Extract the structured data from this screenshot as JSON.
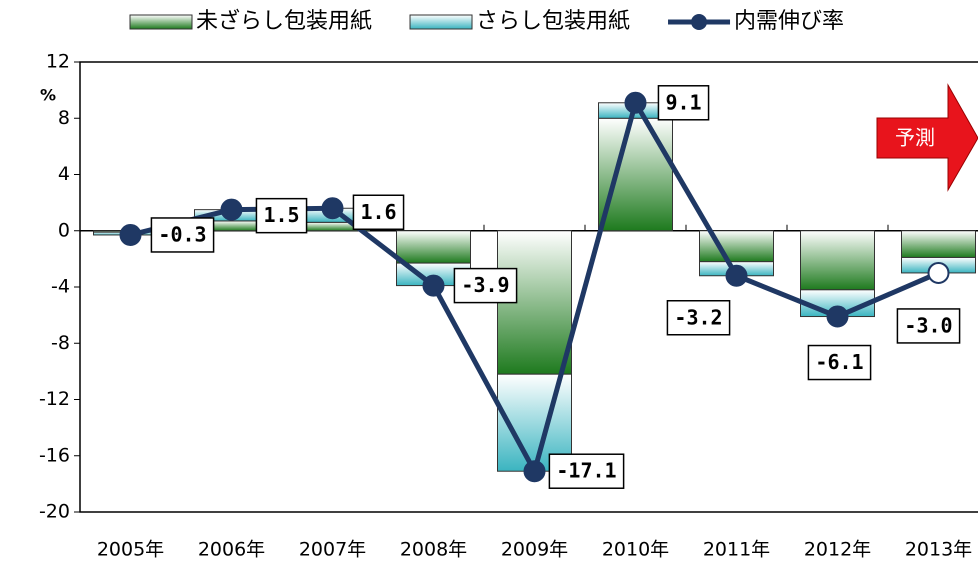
{
  "chart_data": {
    "type": "bar-line",
    "categories": [
      "2005年",
      "2006年",
      "2007年",
      "2008年",
      "2009年",
      "2010年",
      "2011年",
      "2012年",
      "2013年"
    ],
    "series": [
      {
        "name": "未ざらし包装用紙",
        "type": "bar",
        "color": "#1e7a1e",
        "values": [
          -0.1,
          0.7,
          0.6,
          -2.3,
          -10.2,
          8.0,
          -2.2,
          -4.2,
          -1.9
        ]
      },
      {
        "name": "さらし包装用紙",
        "type": "bar",
        "color": "#3ab4c0",
        "values": [
          -0.2,
          0.8,
          1.0,
          -1.6,
          -6.9,
          1.1,
          -1.0,
          -1.9,
          -1.1
        ]
      },
      {
        "name": "内需伸び率",
        "type": "line",
        "color": "#1f3864",
        "values": [
          -0.3,
          1.5,
          1.6,
          -3.9,
          -17.1,
          9.1,
          -3.2,
          -6.1,
          -3.0
        ],
        "value_labels": [
          "-0.3",
          "1.5",
          "1.6",
          "-3.9",
          "-17.1",
          "9.1",
          "-3.2",
          "-6.1",
          "-3.0"
        ]
      }
    ],
    "y_unit": "%",
    "annotation": "予測",
    "ylim": [
      -20,
      12
    ],
    "yticks": [
      -20,
      -16,
      -12,
      -8,
      -4,
      0,
      4,
      8,
      12
    ]
  }
}
